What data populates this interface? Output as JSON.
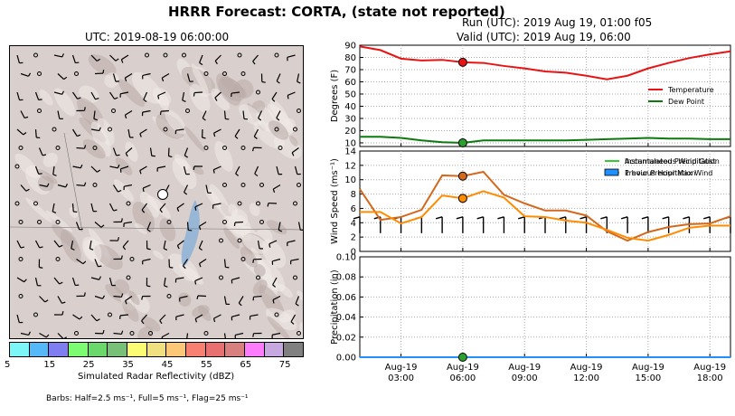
{
  "figure_title": "HRRR Forecast: CORTA, (state not reported)",
  "map": {
    "title": "UTC: 2019-08-19 06:00:00",
    "colorbar": {
      "label": "Simulated Radar Reflectivity (dBZ)",
      "tick_labels": [
        "5",
        "15",
        "25",
        "35",
        "45",
        "55",
        "65",
        "75"
      ],
      "colors": [
        "#7cf6f6",
        "#55b8f8",
        "#7e7ef0",
        "#7cfc70",
        "#6ad86a",
        "#78c078",
        "#fbfb74",
        "#f0e080",
        "#fcc878",
        "#f78070",
        "#e87070",
        "#d88080",
        "#fc7cfc",
        "#c8a8e0",
        "#808080"
      ]
    },
    "barb_note": "Barbs: Half=2.5 ms⁻¹, Full=5 ms⁻¹, Flag=25 ms⁻¹"
  },
  "header": {
    "run": "Run (UTC): 2019 Aug 19, 01:00 f05",
    "valid": "Valid (UTC): 2019 Aug 19, 06:00"
  },
  "chart_data": [
    {
      "type": "line",
      "ylabel": "Degrees (F)",
      "ylim": [
        7,
        90
      ],
      "yticks": [
        10,
        20,
        30,
        40,
        50,
        60,
        70,
        80,
        90
      ],
      "x": [
        "01:00",
        "02:00",
        "03:00",
        "04:00",
        "05:00",
        "06:00",
        "07:00",
        "08:00",
        "09:00",
        "10:00",
        "11:00",
        "12:00",
        "13:00",
        "14:00",
        "15:00",
        "16:00",
        "17:00",
        "18:00",
        "19:00"
      ],
      "series": [
        {
          "name": "Temperature",
          "color": "#e81414",
          "values": [
            89,
            86,
            79,
            77.5,
            78,
            76,
            75.5,
            73,
            71,
            68.5,
            67.5,
            65,
            62,
            65,
            71,
            75.5,
            79.5,
            82.5,
            85
          ]
        },
        {
          "name": "Dew Point",
          "color": "#0c7a0c",
          "values": [
            15,
            15,
            14,
            12,
            10.5,
            10,
            12,
            12,
            12,
            12,
            12,
            12.5,
            13,
            13.5,
            14,
            13.5,
            13.5,
            13,
            13
          ]
        }
      ],
      "marker_x": "06:00",
      "legend": "right"
    },
    {
      "type": "line",
      "ylabel": "Wind Speed (ms⁻¹)",
      "ylim": [
        0,
        14
      ],
      "yticks": [
        0,
        2,
        4,
        6,
        8,
        10,
        12,
        14
      ],
      "x": [
        "01:00",
        "02:00",
        "03:00",
        "04:00",
        "05:00",
        "06:00",
        "07:00",
        "08:00",
        "09:00",
        "10:00",
        "11:00",
        "12:00",
        "13:00",
        "14:00",
        "15:00",
        "16:00",
        "17:00",
        "18:00",
        "19:00"
      ],
      "series": [
        {
          "name": "Instantaneous Wind Gust",
          "color": "#d2691e",
          "values": [
            8.7,
            4.4,
            4.8,
            5.8,
            10.6,
            10.5,
            11.1,
            7.9,
            6.7,
            5.7,
            5.7,
            5.0,
            2.8,
            1.5,
            2.7,
            3.4,
            3.8,
            3.9,
            4.9
          ]
        },
        {
          "name": "Previous Hour Max Wind",
          "color": "#ff8c00",
          "values": [
            5.5,
            5.5,
            3.9,
            4.8,
            7.8,
            7.4,
            8.4,
            7.5,
            4.9,
            4.8,
            4.3,
            4.0,
            3.0,
            1.9,
            1.5,
            2.3,
            3.3,
            3.6,
            3.6
          ]
        }
      ],
      "marker_x": "06:00",
      "legend": "top-right"
    },
    {
      "type": "area",
      "ylabel": "Precipitation (in)",
      "ylim": [
        0,
        0.1
      ],
      "yticks": [
        "0.00",
        "0.02",
        "0.04",
        "0.06",
        "0.08",
        "0.10"
      ],
      "x": [
        "01:00",
        "02:00",
        "03:00",
        "04:00",
        "05:00",
        "06:00",
        "07:00",
        "08:00",
        "09:00",
        "10:00",
        "11:00",
        "12:00",
        "13:00",
        "14:00",
        "15:00",
        "16:00",
        "17:00",
        "18:00",
        "19:00"
      ],
      "series": [
        {
          "name": "Accumulated Precipitation",
          "color": "#32cd32",
          "values": [
            0,
            0,
            0,
            0,
            0,
            0,
            0,
            0,
            0,
            0,
            0,
            0,
            0,
            0,
            0,
            0,
            0,
            0,
            0
          ]
        },
        {
          "name": "1 hour Precipitation",
          "color": "#1e90ff",
          "values": [
            0,
            0,
            0,
            0,
            0,
            0,
            0,
            0,
            0,
            0,
            0,
            0,
            0,
            0,
            0,
            0,
            0,
            0,
            0
          ]
        }
      ],
      "marker_x": "06:00",
      "legend": "top-right"
    }
  ],
  "xaxis_labels": [
    {
      "hour": 3,
      "top": "Aug-19",
      "bottom": "03:00"
    },
    {
      "hour": 6,
      "top": "Aug-19",
      "bottom": "06:00"
    },
    {
      "hour": 9,
      "top": "Aug-19",
      "bottom": "09:00"
    },
    {
      "hour": 12,
      "top": "Aug-19",
      "bottom": "12:00"
    },
    {
      "hour": 15,
      "top": "Aug-19",
      "bottom": "15:00"
    },
    {
      "hour": 18,
      "top": "Aug-19",
      "bottom": "18:00"
    }
  ]
}
